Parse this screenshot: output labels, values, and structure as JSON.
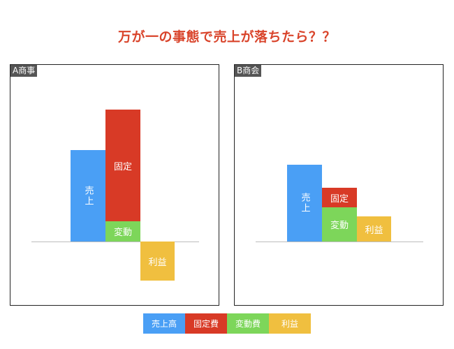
{
  "title": "万が一の事態で売上が落ちたら？？",
  "panels": {
    "a": {
      "label": "A商事",
      "bars": {
        "sales": "売上",
        "fixed": "固定",
        "variable": "変動",
        "profit": "利益"
      }
    },
    "b": {
      "label": "B商会",
      "bars": {
        "sales": "売上",
        "fixed": "固定",
        "variable": "変動",
        "profit": "利益"
      }
    }
  },
  "legend": {
    "sales": "売上高",
    "fixed": "固定費",
    "variable": "変動費",
    "profit": "利益"
  },
  "colors": {
    "title": "#d9442b",
    "sales": "#4a9ff5",
    "fixed": "#d83a26",
    "variable": "#7dd65a",
    "profit": "#f0bf3f"
  }
}
